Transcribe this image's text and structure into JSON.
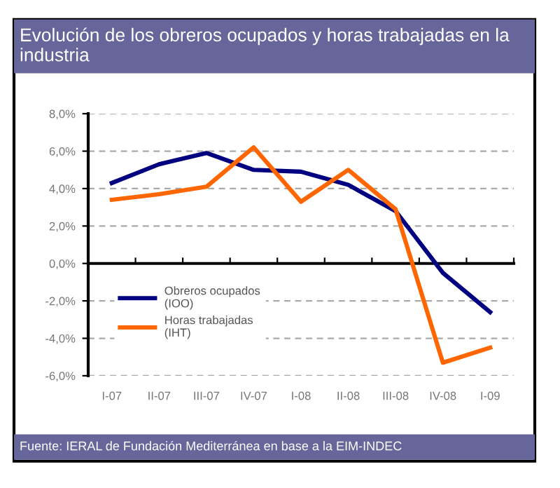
{
  "chart_data": {
    "type": "line",
    "title": "Evolución de los obreros ocupados y horas trabajadas en la industria",
    "annotations": [
      "Fuente: IERAL de Fundación Mediterránea en base a la EIM-INDEC"
    ],
    "categories": [
      "I-07",
      "II-07",
      "III-07",
      "IV-07",
      "I-08",
      "II-08",
      "III-08",
      "IV-08",
      "I-09"
    ],
    "ylim": [
      -6,
      8
    ],
    "yticks": [
      {
        "value": -6,
        "label": "-6,0%"
      },
      {
        "value": -4,
        "label": "-4,0%"
      },
      {
        "value": -2,
        "label": "-2,0%"
      },
      {
        "value": 0,
        "label": "0,0%"
      },
      {
        "value": 2,
        "label": "2,0%"
      },
      {
        "value": 4,
        "label": "4,0%"
      },
      {
        "value": 6,
        "label": "6,0%"
      },
      {
        "value": 8,
        "label": "8,0%"
      }
    ],
    "grid": "y",
    "legend": "bottom left",
    "marker": "none",
    "line_style": "solid",
    "series": [
      {
        "name": "Obreros ocupados\n(IOO)",
        "color": "#000080",
        "values": [
          4.3,
          5.3,
          5.9,
          5.0,
          4.9,
          4.2,
          2.8,
          -0.5,
          -2.6
        ]
      },
      {
        "name": "Horas trabajadas\n(IHT)",
        "color": "#ff6600",
        "values": [
          3.4,
          3.7,
          4.1,
          6.2,
          3.3,
          5.0,
          2.9,
          -5.3,
          -4.5
        ]
      }
    ]
  }
}
